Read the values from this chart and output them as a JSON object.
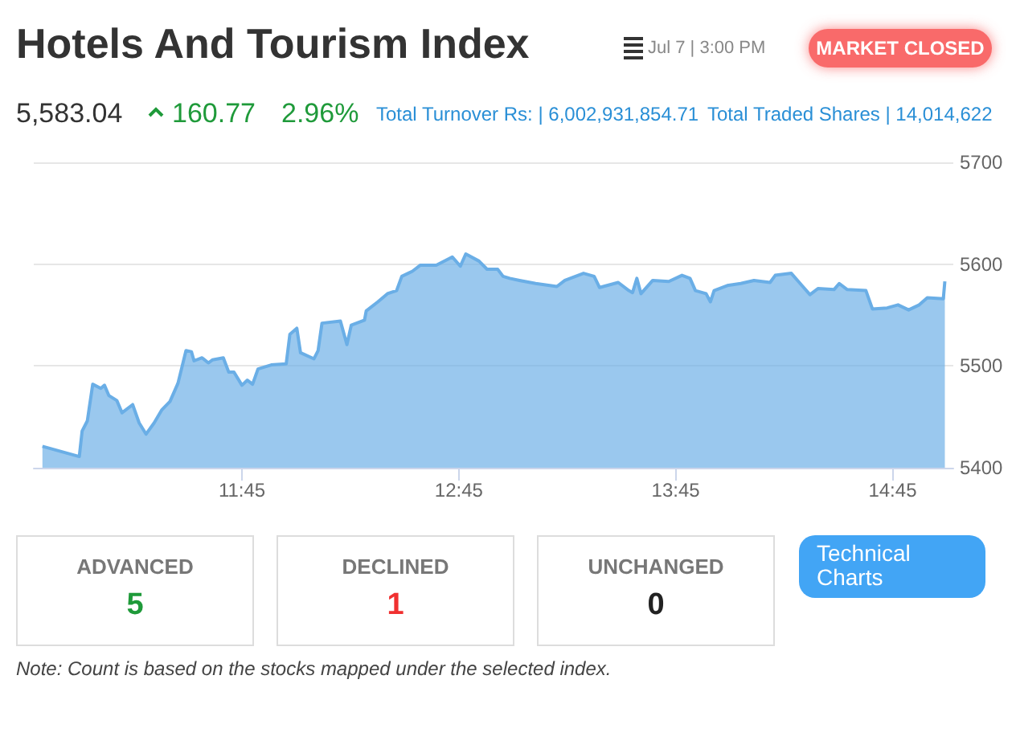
{
  "chart_data": {
    "type": "area",
    "title": "Hotels And Tourism Index",
    "annotations": [
      "Jul 7 | 3:00 PM",
      "MARKET CLOSED",
      "5,583.04",
      "160.77",
      "2.96%",
      "Total Turnover Rs: | 6,002,931,854.71",
      "Total Traded Shares | 14,014,622",
      "ADVANCED",
      "5",
      "DECLINED",
      "1",
      "UNCHANGED",
      "0",
      "Technical Charts",
      "Note: Count is based on the stocks mapped under the selected index."
    ],
    "x": [
      10.83,
      11.0,
      11.013,
      11.037,
      11.062,
      11.099,
      11.116,
      11.136,
      11.173,
      11.197,
      11.246,
      11.276,
      11.308,
      11.345,
      11.381,
      11.418,
      11.455,
      11.492,
      11.517,
      11.529,
      11.566,
      11.595,
      11.615,
      11.664,
      11.689,
      11.713,
      11.75,
      11.775,
      11.799,
      11.824,
      11.885,
      11.954,
      11.971,
      12.003,
      12.02,
      12.082,
      12.101,
      12.119,
      12.204,
      12.234,
      12.254,
      12.315,
      12.323,
      12.377,
      12.421,
      12.463,
      12.487,
      12.536,
      12.573,
      12.646,
      12.72,
      12.757,
      12.782,
      12.843,
      12.88,
      12.929,
      12.954,
      12.985,
      13.03,
      13.104,
      13.202,
      13.239,
      13.325,
      13.374,
      13.399,
      13.485,
      13.534,
      13.551,
      13.571,
      13.59,
      13.644,
      13.718,
      13.779,
      13.816,
      13.841,
      13.89,
      13.91,
      13.927,
      13.988,
      14.05,
      14.111,
      14.185,
      14.209,
      14.283,
      14.332,
      14.369,
      14.406,
      14.48,
      14.504,
      14.541,
      14.627,
      14.657,
      14.725,
      14.775,
      14.824,
      14.873,
      14.91,
      14.984,
      14.991
    ],
    "values": [
      5421,
      5411,
      5436,
      5446,
      5482,
      5478,
      5481,
      5471,
      5466,
      5454,
      5462,
      5444,
      5433,
      5444,
      5457,
      5465,
      5483,
      5515,
      5514,
      5505,
      5508,
      5503,
      5506,
      5508,
      5494,
      5494,
      5481,
      5486,
      5482,
      5497,
      5501,
      5502,
      5531,
      5537,
      5513,
      5507,
      5515,
      5542,
      5544,
      5521,
      5540,
      5545,
      5554,
      5563,
      5571,
      5574,
      5588,
      5593,
      5599,
      5599,
      5607,
      5598,
      5610,
      5603,
      5595,
      5595,
      5588,
      5586,
      5584,
      5581,
      5578,
      5584,
      5591,
      5588,
      5577,
      5582,
      5574,
      5572,
      5586,
      5571,
      5584,
      5583,
      5589,
      5586,
      5574,
      5571,
      5563,
      5574,
      5579,
      5581,
      5584,
      5582,
      5589,
      5591,
      5579,
      5570,
      5576,
      5575,
      5581,
      5575,
      5574,
      5556,
      5557,
      5560,
      5555,
      5560,
      5567,
      5566,
      5583
    ],
    "color": "#6aaee6",
    "xlim": [
      10.79,
      15.03
    ],
    "xticks": [
      {
        "value": 11.75,
        "label": "11:45"
      },
      {
        "value": 12.75,
        "label": "12:45"
      },
      {
        "value": 13.75,
        "label": "13:45"
      },
      {
        "value": 14.75,
        "label": "14:45"
      }
    ],
    "ylim": [
      5400,
      5700
    ],
    "yticks": [
      5400,
      5500,
      5600,
      5700
    ],
    "grid": "y"
  }
}
